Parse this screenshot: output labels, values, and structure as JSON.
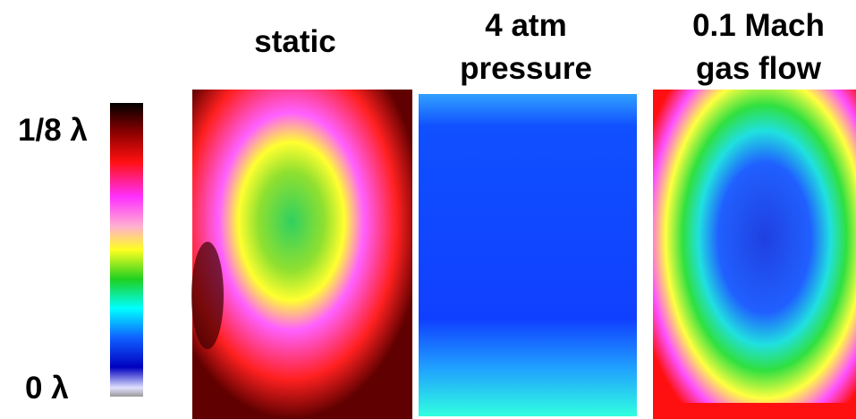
{
  "colorbar": {
    "max_label": "1/8 λ",
    "min_label": "0 λ"
  },
  "panels": [
    {
      "title_lines": [
        "static"
      ]
    },
    {
      "title_lines": [
        "4 atm",
        "pressure"
      ]
    },
    {
      "title_lines": [
        "0.1 Mach",
        "gas flow"
      ]
    }
  ]
}
